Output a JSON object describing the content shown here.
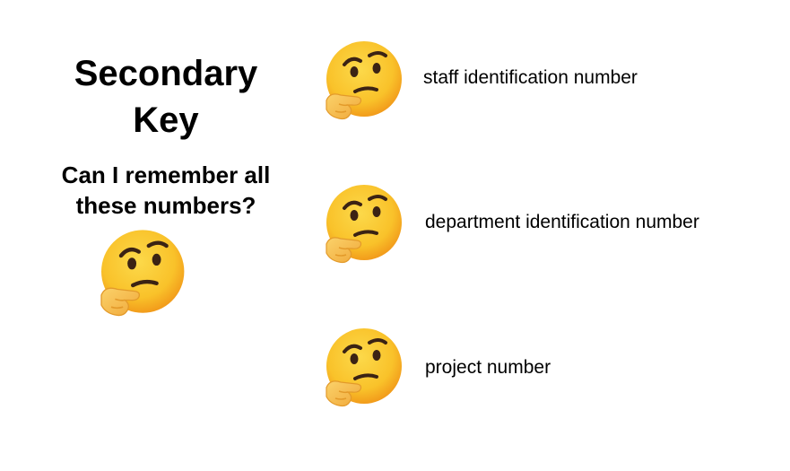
{
  "slide": {
    "title_line1": "Secondary",
    "title_line2": "Key",
    "question_line1": "Can I remember all",
    "question_line2": "these numbers?"
  },
  "items": [
    {
      "label": "staff identification number",
      "icon": "thinking-face-icon"
    },
    {
      "label": "department identification number",
      "icon": "thinking-face-icon"
    },
    {
      "label": "project number",
      "icon": "thinking-face-icon"
    }
  ],
  "colors": {
    "face": "#F9C22A",
    "face_shade": "#F29C1B",
    "hand": "#F7BE4B",
    "features": "#3B2314"
  }
}
